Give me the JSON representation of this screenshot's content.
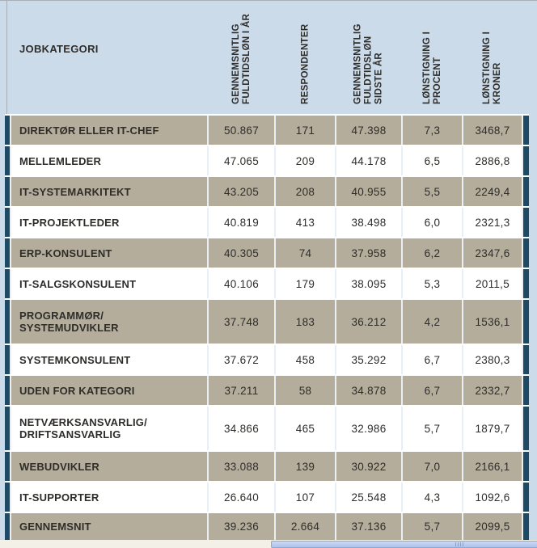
{
  "page": {
    "background": "#ccdbea",
    "row_tan": "#b4ad9b",
    "row_white": "#ffffff",
    "edge_navy": "#1d4b66",
    "text_color": "#2e2d2a",
    "separator": "#e9eff5",
    "border_line": "#a7b0b8",
    "bottom_strip": "#f3f0e8",
    "scrollbar_fill": "#aec3ec",
    "scrollbar_fill_top": "#cbd9f4",
    "scrollbar_border": "#8ba9d4",
    "scrollbar_grip": "#86a0d0"
  },
  "header": {
    "jobkategori": "JOBKATEGORI",
    "rotated_columns": [
      {
        "lines": [
          "GENNEMSNITLIG",
          "FULDTIDSLØN I ÅR"
        ]
      },
      {
        "lines": [
          "RESPONDENTER"
        ]
      },
      {
        "lines": [
          "GENNEMSNITLIG",
          "FULDTIDSLØN",
          "SIDSTE ÅR"
        ]
      },
      {
        "lines": [
          "LØNSTIGNING I",
          "PROCENT"
        ]
      },
      {
        "lines": [
          "LØNSTIGNING I",
          "KRONER"
        ]
      }
    ]
  },
  "chart_data": {
    "type": "table",
    "columns": [
      "JOBKATEGORI",
      "GENNEMSNITLIG FULDTIDSLØN I ÅR",
      "RESPONDENTER",
      "GENNEMSNITLIG FULDTIDSLØN SIDSTE ÅR",
      "LØNSTIGNING I PROCENT",
      "LØNSTIGNING I KRONER"
    ],
    "rows": [
      {
        "category": "DIREKTØR ELLER IT-CHEF",
        "lines": [
          "DIREKTØR ELLER IT-CHEF"
        ],
        "values": [
          "50.867",
          "171",
          "47.398",
          "7,3",
          "3468,7"
        ]
      },
      {
        "category": "MELLEMLEDER",
        "lines": [
          "MELLEMLEDER"
        ],
        "values": [
          "47.065",
          "209",
          "44.178",
          "6,5",
          "2886,8"
        ]
      },
      {
        "category": "IT-SYSTEMARKITEKT",
        "lines": [
          "IT-SYSTEMARKITEKT"
        ],
        "values": [
          "43.205",
          "208",
          "40.955",
          "5,5",
          "2249,4"
        ]
      },
      {
        "category": "IT-PROJEKTLEDER",
        "lines": [
          "IT-PROJEKTLEDER"
        ],
        "values": [
          "40.819",
          "413",
          "38.498",
          "6,0",
          "2321,3"
        ]
      },
      {
        "category": "ERP-KONSULENT",
        "lines": [
          "ERP-KONSULENT"
        ],
        "values": [
          "40.305",
          "74",
          "37.958",
          "6,2",
          "2347,6"
        ]
      },
      {
        "category": "IT-SALGSKONSULENT",
        "lines": [
          "IT-SALGSKONSULENT"
        ],
        "values": [
          "40.106",
          "179",
          "38.095",
          "5,3",
          "2011,5"
        ]
      },
      {
        "category": "PROGRAMMØR/SYSTEMUDVIKLER",
        "lines": [
          "PROGRAMMØR/",
          "SYSTEMUDVIKLER"
        ],
        "values": [
          "37.748",
          "183",
          "36.212",
          "4,2",
          "1536,1"
        ]
      },
      {
        "category": "SYSTEMKONSULENT",
        "lines": [
          "SYSTEMKONSULENT"
        ],
        "values": [
          "37.672",
          "458",
          "35.292",
          "6,7",
          "2380,3"
        ]
      },
      {
        "category": "UDEN FOR KATEGORI",
        "lines": [
          "UDEN FOR KATEGORI"
        ],
        "values": [
          "37.211",
          "58",
          "34.878",
          "6,7",
          "2332,7"
        ]
      },
      {
        "category": "NETVÆRKSANSVARLIG/DRIFTSANSVARLIG",
        "lines": [
          "NETVÆRKSANSVARLIG/",
          "DRIFTSANSVARLIG"
        ],
        "values": [
          "34.866",
          "465",
          "32.986",
          "5,7",
          "1879,7"
        ]
      },
      {
        "category": "WEBUDVIKLER",
        "lines": [
          "WEBUDVIKLER"
        ],
        "values": [
          "33.088",
          "139",
          "30.922",
          "7,0",
          "2166,1"
        ]
      },
      {
        "category": "IT-SUPPORTER",
        "lines": [
          "IT-SUPPORTER"
        ],
        "values": [
          "26.640",
          "107",
          "25.548",
          "4,3",
          "1092,6"
        ]
      },
      {
        "category": "GENNEMSNIT",
        "lines": [
          "GENNEMSNIT"
        ],
        "values": [
          "39.236",
          "2.664",
          "37.136",
          "5,7",
          "2099,5"
        ]
      }
    ]
  }
}
